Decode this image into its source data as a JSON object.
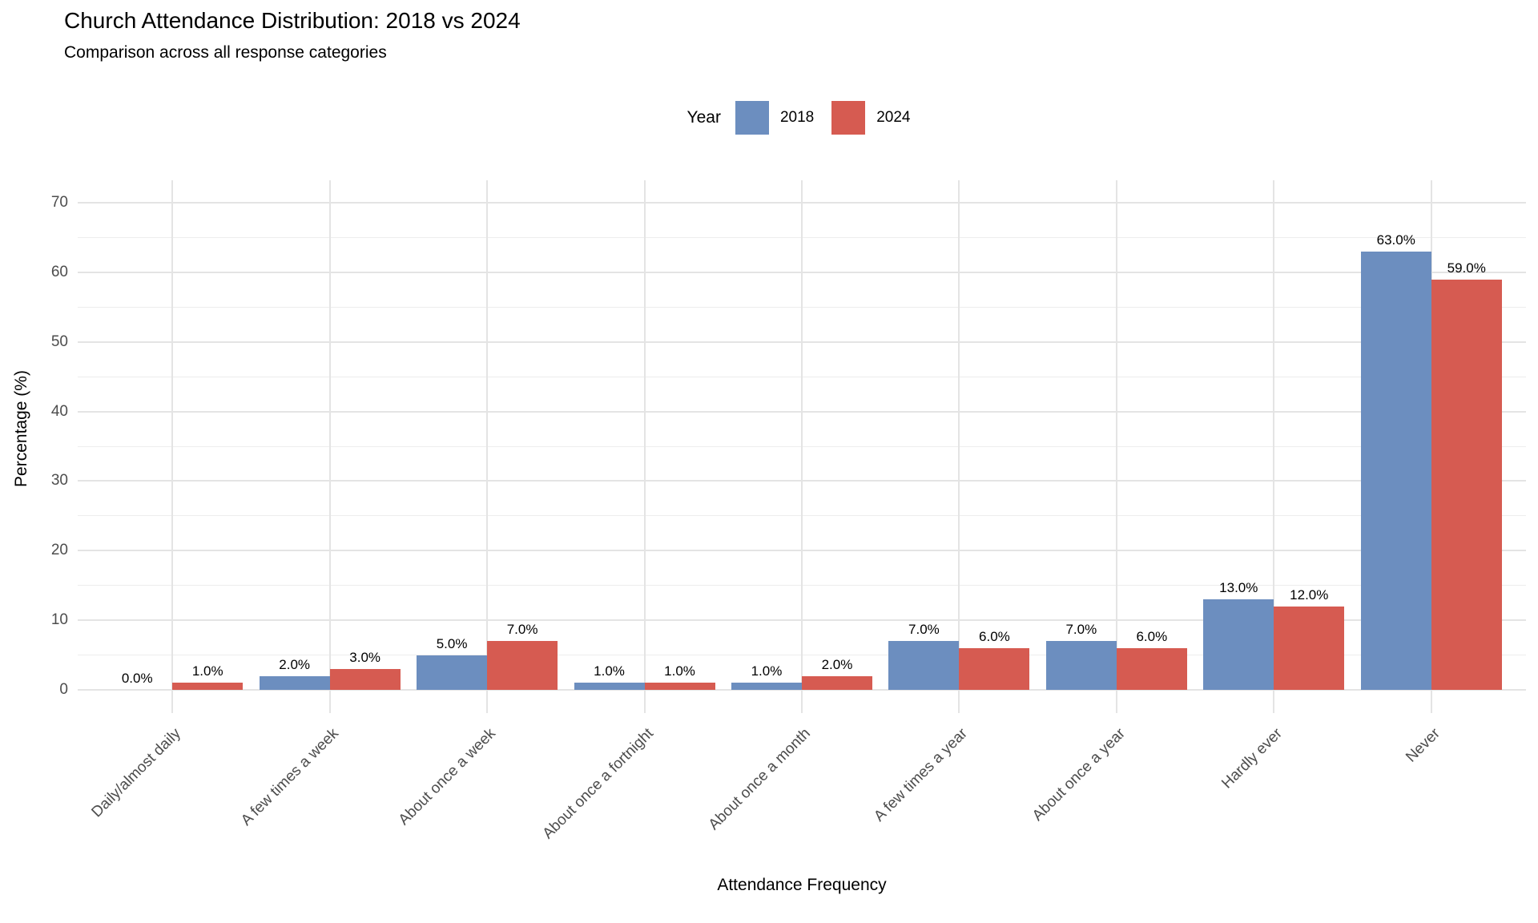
{
  "header": {
    "title": "Church Attendance Distribution: 2018 vs 2024",
    "subtitle": "Comparison across all response categories"
  },
  "chart_data": {
    "type": "bar",
    "title": "Church Attendance Distribution: 2018 vs 2024",
    "subtitle": "Comparison across all response categories",
    "categories": [
      "Daily/almost daily",
      "A few times a week",
      "About once a week",
      "About once a fortnight",
      "About once a month",
      "A few times a year",
      "About once a year",
      "Hardly ever",
      "Never"
    ],
    "series": [
      {
        "name": "2018",
        "color": "#6C8EBF",
        "values": [
          0,
          2,
          5,
          1,
          1,
          7,
          7,
          13,
          63
        ],
        "bar_labels": [
          "0.0%",
          "2.0%",
          "5.0%",
          "1.0%",
          "1.0%",
          "7.0%",
          "7.0%",
          "13.0%",
          "63.0%"
        ]
      },
      {
        "name": "2024",
        "color": "#D65B51",
        "values": [
          1,
          3,
          7,
          1,
          2,
          6,
          6,
          12,
          59
        ],
        "bar_labels": [
          "1.0%",
          "3.0%",
          "7.0%",
          "1.0%",
          "2.0%",
          "6.0%",
          "6.0%",
          "12.0%",
          "59.0%"
        ]
      }
    ],
    "xlabel": "Attendance Frequency",
    "ylabel": "Percentage (%)",
    "ylim": [
      0,
      70
    ],
    "yticks": [
      0,
      10,
      20,
      30,
      40,
      50,
      60,
      70
    ],
    "minor_ticks": [
      5,
      15,
      25,
      35,
      45,
      55,
      65
    ],
    "grid": true,
    "legend_title": "Year",
    "legend_position": "top",
    "background": "#FFFFFF",
    "gridline_color": "#E4E4E4",
    "tick_text_color": "#4D4D4D"
  }
}
